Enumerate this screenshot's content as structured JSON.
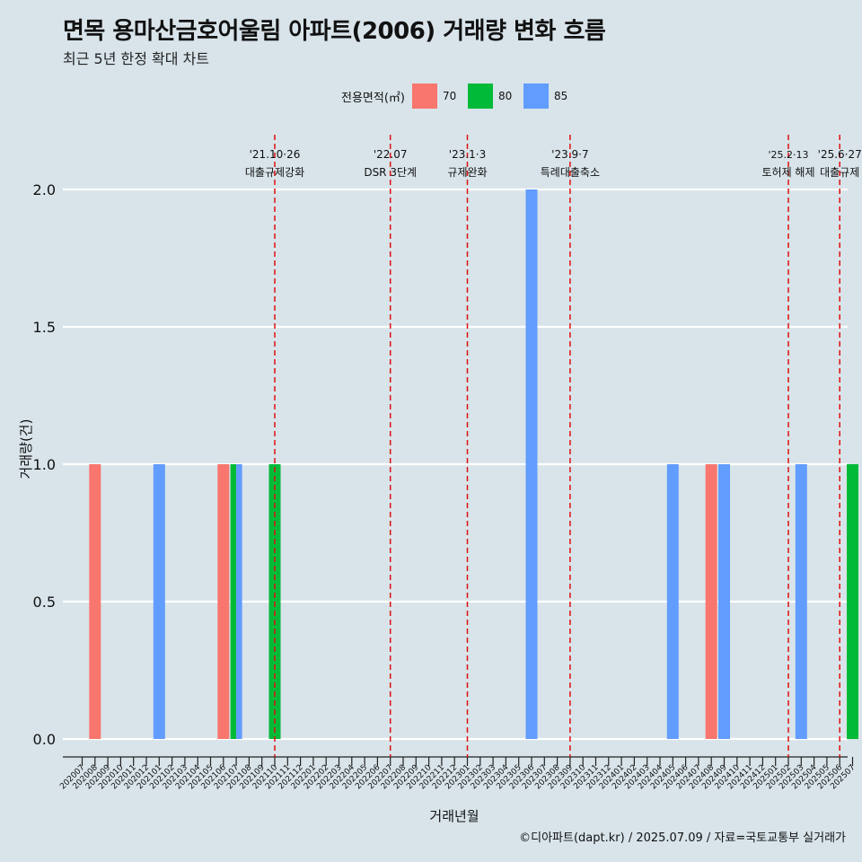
{
  "title": "면목 용마산금호어울림 아파트(2006) 거래량 변화 흐름",
  "subtitle": "최근 5년 한정 확대 차트",
  "legend": {
    "title": "전용면적(㎡)",
    "items": [
      {
        "label": "70",
        "color": "#F8766D"
      },
      {
        "label": "80",
        "color": "#00BA38"
      },
      {
        "label": "85",
        "color": "#619CFF"
      }
    ]
  },
  "footer": "©디아파트(dapt.kr) / 2025.07.09 / 자료=국토교통부 실거래가",
  "chart_data": {
    "type": "bar",
    "xlabel": "거래년월",
    "ylabel": "거래량(건)",
    "ylim": [
      0,
      2
    ],
    "yticks": [
      "0.0",
      "0.5",
      "1.0",
      "1.5",
      "2.0"
    ],
    "categories": [
      "202007",
      "202008",
      "202009",
      "202010",
      "202011",
      "202012",
      "202101",
      "202102",
      "202103",
      "202104",
      "202105",
      "202106",
      "202107",
      "202108",
      "202109",
      "202110",
      "202111",
      "202112",
      "202201",
      "202202",
      "202203",
      "202204",
      "202205",
      "202206",
      "202207",
      "202208",
      "202209",
      "202210",
      "202211",
      "202212",
      "202301",
      "202302",
      "202303",
      "202304",
      "202305",
      "202306",
      "202307",
      "202308",
      "202309",
      "202310",
      "202311",
      "202312",
      "202401",
      "202402",
      "202403",
      "202404",
      "202405",
      "202406",
      "202407",
      "202408",
      "202409",
      "202410",
      "202411",
      "202412",
      "202501",
      "202502",
      "202503",
      "202504",
      "202505",
      "202506",
      "202507"
    ],
    "series": [
      {
        "name": "70",
        "color": "#F8766D",
        "points": [
          {
            "x": "202008",
            "y": 1
          },
          {
            "x": "202106",
            "y": 1
          },
          {
            "x": "202408",
            "y": 1
          }
        ]
      },
      {
        "name": "80",
        "color": "#00BA38",
        "points": [
          {
            "x": "202107",
            "y": 1
          },
          {
            "x": "202110",
            "y": 1
          },
          {
            "x": "202507",
            "y": 1
          }
        ]
      },
      {
        "name": "85",
        "color": "#619CFF",
        "points": [
          {
            "x": "202101",
            "y": 1
          },
          {
            "x": "202107",
            "y": 1
          },
          {
            "x": "202306",
            "y": 2
          },
          {
            "x": "202405",
            "y": 1
          },
          {
            "x": "202409",
            "y": 1
          },
          {
            "x": "202503",
            "y": 1
          }
        ]
      }
    ],
    "events": [
      {
        "date": "'21.10·26",
        "label": "대출규제강화",
        "x": "202110"
      },
      {
        "date": "'22.07",
        "label": "DSR 3단계",
        "x": "202207"
      },
      {
        "date": "'23.1·3",
        "label": "규제완화",
        "x": "202301"
      },
      {
        "date": "'23.9·7",
        "label": "특례대출축소",
        "x": "202309"
      },
      {
        "date": "'25.2·13",
        "label": "토허제 해제",
        "x": "202502"
      },
      {
        "date": "'25.6·27",
        "label": "대출규제",
        "x": "202506"
      }
    ]
  }
}
